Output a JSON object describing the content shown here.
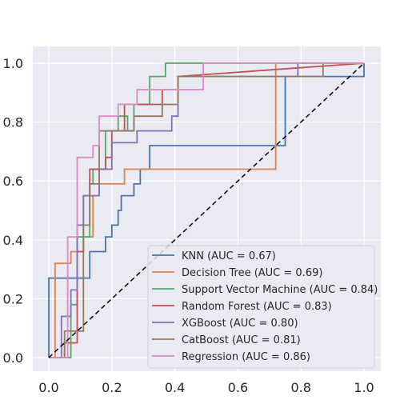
{
  "chart_data": {
    "type": "line",
    "title": "",
    "xlabel": "",
    "ylabel": "",
    "xlim": [
      0.0,
      1.0
    ],
    "ylim": [
      0.0,
      1.0
    ],
    "xticks": [
      "0.0",
      "0.2",
      "0.4",
      "0.6",
      "0.8",
      "1.0"
    ],
    "yticks": [
      "0.0",
      "0.2",
      "0.4",
      "0.6",
      "0.8",
      "1.0"
    ],
    "grid": true,
    "legend_position": "lower-right",
    "diagonal": {
      "x": [
        0,
        1
      ],
      "y": [
        0,
        1
      ],
      "style": "dashed",
      "color": "#111111"
    },
    "series": [
      {
        "name": "KNN (AUC = 0.67)",
        "color": "#4c72b0",
        "x": [
          0,
          0,
          0.13,
          0.13,
          0.18,
          0.18,
          0.2,
          0.2,
          0.22,
          0.22,
          0.23,
          0.23,
          0.27,
          0.27,
          0.29,
          0.29,
          0.32,
          0.32,
          0.36,
          0.36,
          0.75,
          0.75,
          1.0,
          1.0
        ],
        "y": [
          0,
          0.27,
          0.27,
          0.36,
          0.36,
          0.41,
          0.41,
          0.45,
          0.45,
          0.5,
          0.5,
          0.55,
          0.55,
          0.59,
          0.59,
          0.64,
          0.64,
          0.72,
          0.72,
          0.72,
          0.72,
          0.955,
          0.955,
          1.0
        ]
      },
      {
        "name": "Decision Tree (AUC = 0.69)",
        "color": "#dd8452",
        "x": [
          0,
          0.02,
          0.02,
          0.07,
          0.07,
          0.11,
          0.11,
          0.14,
          0.14,
          0.16,
          0.16,
          0.22,
          0.22,
          0.24,
          0.24,
          0.72,
          0.72,
          1.0
        ],
        "y": [
          0,
          0,
          0.32,
          0.32,
          0.36,
          0.36,
          0.41,
          0.41,
          0.55,
          0.55,
          0.59,
          0.59,
          0.59,
          0.59,
          0.64,
          0.64,
          1.0,
          1.0
        ]
      },
      {
        "name": "Support Vector Machine (AUC = 0.84)",
        "color": "#55a868",
        "x": [
          0,
          0.07,
          0.07,
          0.09,
          0.09,
          0.13,
          0.13,
          0.14,
          0.14,
          0.18,
          0.18,
          0.22,
          0.22,
          0.25,
          0.25,
          0.27,
          0.27,
          0.32,
          0.32,
          0.37,
          0.37,
          1.0
        ],
        "y": [
          0,
          0,
          0.18,
          0.18,
          0.41,
          0.41,
          0.59,
          0.59,
          0.64,
          0.64,
          0.77,
          0.77,
          0.82,
          0.82,
          0.77,
          0.77,
          0.86,
          0.86,
          0.955,
          0.955,
          1.0,
          1.0
        ]
      },
      {
        "name": "Random Forest (AUC = 0.83)",
        "color": "#c44e52",
        "x": [
          0,
          0.05,
          0.05,
          0.09,
          0.09,
          0.11,
          0.11,
          0.13,
          0.13,
          0.18,
          0.18,
          0.2,
          0.2,
          0.24,
          0.24,
          0.36,
          0.36,
          0.41,
          0.41,
          1.0
        ],
        "y": [
          0,
          0,
          0.05,
          0.05,
          0.36,
          0.36,
          0.55,
          0.55,
          0.64,
          0.64,
          0.68,
          0.68,
          0.77,
          0.77,
          0.86,
          0.86,
          0.91,
          0.91,
          0.955,
          1.0
        ]
      },
      {
        "name": "XGBoost (AUC = 0.80)",
        "color": "#8172b3",
        "x": [
          0,
          0.04,
          0.04,
          0.07,
          0.07,
          0.09,
          0.09,
          0.11,
          0.11,
          0.16,
          0.16,
          0.2,
          0.2,
          0.23,
          0.23,
          0.28,
          0.28,
          0.39,
          0.39,
          0.41,
          0.41,
          0.79,
          0.79,
          1.0
        ],
        "y": [
          0,
          0,
          0.14,
          0.14,
          0.23,
          0.23,
          0.45,
          0.45,
          0.55,
          0.55,
          0.64,
          0.64,
          0.73,
          0.73,
          0.73,
          0.73,
          0.77,
          0.77,
          0.82,
          0.82,
          0.955,
          0.955,
          1.0,
          1.0
        ]
      },
      {
        "name": "CatBoost (AUC = 0.81)",
        "color": "#937860",
        "x": [
          0,
          0.05,
          0.05,
          0.07,
          0.07,
          0.11,
          0.11,
          0.13,
          0.13,
          0.16,
          0.16,
          0.2,
          0.2,
          0.27,
          0.27,
          0.36,
          0.36,
          0.41,
          0.41,
          0.87,
          0.87,
          1.0
        ],
        "y": [
          0,
          0,
          0.09,
          0.09,
          0.09,
          0.09,
          0.45,
          0.45,
          0.59,
          0.59,
          0.77,
          0.77,
          0.77,
          0.77,
          0.82,
          0.82,
          0.86,
          0.86,
          0.955,
          0.955,
          1.0,
          1.0
        ]
      },
      {
        "name": "Regression (AUC = 0.86)",
        "color": "#da8bc3",
        "x": [
          0,
          0.06,
          0.06,
          0.09,
          0.09,
          0.14,
          0.14,
          0.16,
          0.16,
          0.22,
          0.22,
          0.28,
          0.28,
          0.49,
          0.49,
          1.0
        ],
        "y": [
          0,
          0,
          0.41,
          0.41,
          0.68,
          0.68,
          0.72,
          0.72,
          0.82,
          0.82,
          0.86,
          0.86,
          0.91,
          0.91,
          1.0,
          1.0
        ]
      }
    ]
  }
}
